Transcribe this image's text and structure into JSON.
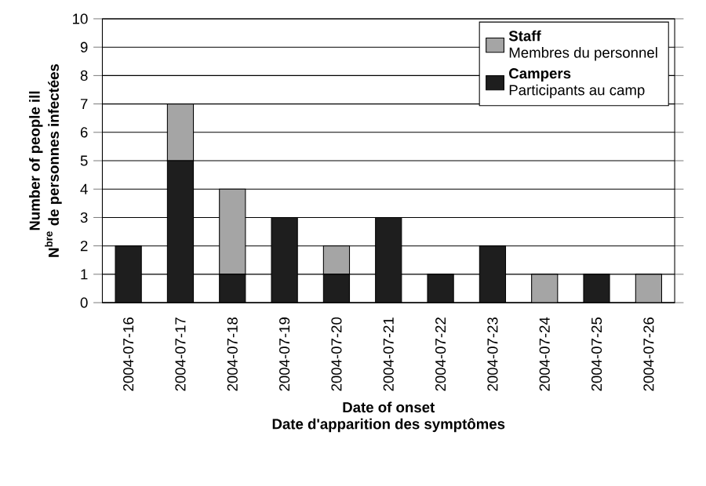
{
  "chart_data": {
    "type": "bar",
    "stacked": true,
    "categories": [
      "2004-07-16",
      "2004-07-17",
      "2004-07-18",
      "2004-07-19",
      "2004-07-20",
      "2004-07-21",
      "2004-07-22",
      "2004-07-23",
      "2004-07-24",
      "2004-07-25",
      "2004-07-26"
    ],
    "series": [
      {
        "name": "**Campers**\nParticipants au camp",
        "color": "#1e1e1e",
        "values": [
          2,
          5,
          1,
          3,
          1,
          3,
          1,
          2,
          0,
          1,
          0
        ]
      },
      {
        "name": "**Staff**\nMembres du personnel",
        "color": "#a5a5a5",
        "values": [
          0,
          2,
          3,
          0,
          1,
          0,
          0,
          0,
          1,
          0,
          1
        ]
      }
    ],
    "xlabel": "Date of onset\nDate d'apparition des symptômes",
    "ylabel": "Number of people ill\nN$^{bre}$ de personnes infectées",
    "ylim": [
      0,
      10
    ],
    "yticks": [
      0,
      1,
      2,
      3,
      4,
      5,
      6,
      7,
      8,
      9,
      10
    ],
    "grid": "y",
    "legend": "top right"
  }
}
